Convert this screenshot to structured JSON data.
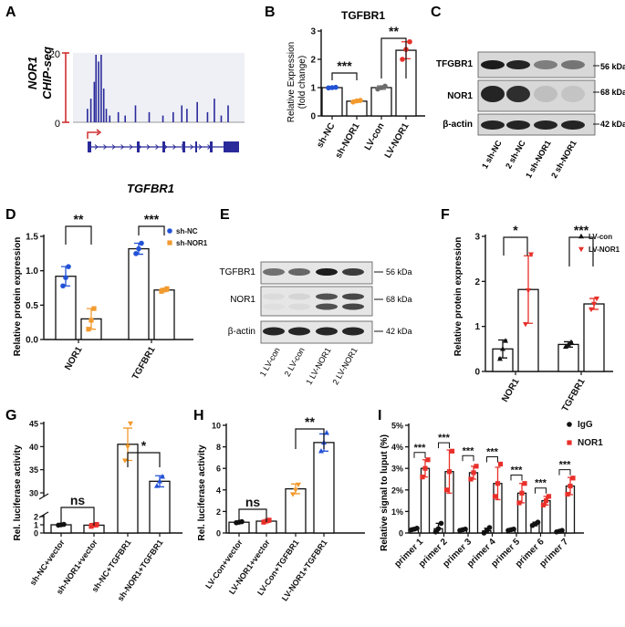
{
  "figure": {
    "panel_letters": [
      "A",
      "B",
      "C",
      "D",
      "E",
      "F",
      "G",
      "H",
      "I"
    ]
  },
  "blot_c": {
    "rows": [
      "TFGBR1",
      "NOR1",
      "β-actin"
    ],
    "kda": [
      "56 kDa",
      "68 kDa",
      "42 kDa"
    ],
    "lanes": [
      "1 sh-NC",
      "2 sh-NC",
      "1 sh-NOR1",
      "2 sh-NOR1"
    ]
  },
  "blot_e": {
    "rows": [
      "TGFBR1",
      "NOR1",
      "β-actin"
    ],
    "kda": [
      "56 kDa",
      "68 kDa",
      "42 kDa"
    ],
    "lanes": [
      "1 LV-con",
      "2 LV-con",
      "1 LV-NOR1",
      "2 LV-NOR1"
    ]
  },
  "chart_data": [
    {
      "panel": "A",
      "type": "bar",
      "ylabel_line1": "NOR1",
      "ylabel_line2": "CHIP-seq",
      "yticks": [
        "20",
        "0"
      ],
      "gene_label": "TGFBR1",
      "ylim": [
        0,
        20
      ],
      "peaks": [
        [
          0.08,
          4
        ],
        [
          0.1,
          7
        ],
        [
          0.12,
          12
        ],
        [
          0.13,
          20
        ],
        [
          0.145,
          18
        ],
        [
          0.16,
          20
        ],
        [
          0.175,
          10
        ],
        [
          0.19,
          4
        ],
        [
          0.21,
          2
        ],
        [
          0.26,
          3
        ],
        [
          0.3,
          2
        ],
        [
          0.36,
          5
        ],
        [
          0.44,
          3
        ],
        [
          0.52,
          2
        ],
        [
          0.58,
          3
        ],
        [
          0.63,
          5
        ],
        [
          0.66,
          4
        ],
        [
          0.72,
          6
        ],
        [
          0.78,
          3
        ],
        [
          0.82,
          7
        ],
        [
          0.86,
          2
        ],
        [
          0.9,
          5
        ]
      ]
    },
    {
      "panel": "B",
      "type": "bar",
      "title": "TGFBR1",
      "ylabel_line1": "Relative  Expression",
      "ylabel_line2": "(fold change)",
      "ylim": [
        0,
        3
      ],
      "yticks": [
        "0",
        "1",
        "2",
        "3"
      ],
      "categories": [
        "sh-NC",
        "sh-NOR1",
        "LV-con",
        "LV-NOR1"
      ],
      "values": [
        1.0,
        0.52,
        1.0,
        2.32
      ],
      "errors": [
        0.03,
        0.04,
        0.06,
        0.3
      ],
      "points": [
        [
          0.99,
          1.0,
          1.01
        ],
        [
          0.49,
          0.53,
          0.55
        ],
        [
          0.95,
          1.0,
          1.05
        ],
        [
          2.0,
          2.35,
          2.62
        ]
      ],
      "colors": [
        "#2352d6",
        "#f29a2e",
        "#6b6b6b",
        "#e8302a"
      ],
      "sig": [
        {
          "from": 0,
          "to": 1,
          "label": "***"
        },
        {
          "from": 2,
          "to": 3,
          "label": "**"
        }
      ]
    },
    {
      "panel": "D",
      "type": "bar",
      "ylabel": "Relative protein expression",
      "ylim": [
        0,
        1.5
      ],
      "yticks": [
        "0.0",
        "0.5",
        "1.0",
        "1.5"
      ],
      "groups": [
        "NOR1",
        "TGFBR1"
      ],
      "series": [
        {
          "name": "sh-NC",
          "color": "#2352d6",
          "values": [
            0.92,
            1.32
          ],
          "errors": [
            0.14,
            0.08
          ],
          "points": [
            [
              0.78,
              0.9,
              1.06
            ],
            [
              1.25,
              1.32,
              1.4
            ]
          ]
        },
        {
          "name": "sh-NOR1",
          "color": "#f29a2e",
          "values": [
            0.3,
            0.72
          ],
          "errors": [
            0.15,
            0.02
          ],
          "points": [
            [
              0.15,
              0.28,
              0.45
            ],
            [
              0.7,
              0.72,
              0.74
            ]
          ]
        }
      ],
      "sig": [
        {
          "group": 0,
          "label": "**"
        },
        {
          "group": 1,
          "label": "***"
        }
      ]
    },
    {
      "panel": "F",
      "type": "bar",
      "ylabel": "Relative protein expression",
      "ylim": [
        0,
        3
      ],
      "yticks": [
        "0",
        "1",
        "2",
        "3"
      ],
      "groups": [
        "NOR1",
        "TGFBR1"
      ],
      "series": [
        {
          "name": "LV-con",
          "color": "#111111",
          "values": [
            0.5,
            0.6
          ],
          "errors": [
            0.2,
            0.06
          ],
          "points": [
            [
              0.28,
              0.5,
              0.68
            ],
            [
              0.55,
              0.6,
              0.65
            ]
          ]
        },
        {
          "name": "LV-NOR1",
          "color": "#e8302a",
          "values": [
            1.82,
            1.5
          ],
          "errors": [
            0.75,
            0.12
          ],
          "points": [
            [
              1.05,
              1.8,
              2.6
            ],
            [
              1.38,
              1.5,
              1.62
            ]
          ]
        }
      ],
      "sig": [
        {
          "group": 0,
          "label": "*"
        },
        {
          "group": 1,
          "label": "***"
        }
      ]
    },
    {
      "panel": "G",
      "type": "bar",
      "ylabel": "Rel. luciferase activity",
      "yticks": [
        "0",
        "1",
        "2",
        "30",
        "35",
        "40",
        "45"
      ],
      "categories": [
        "sh-NC+vector",
        "sh-NOR1+vector",
        "sh-NC+TGFBR1",
        "sh-NOR1+TGFBR1"
      ],
      "values": [
        1.0,
        0.95,
        40.5,
        32.5
      ],
      "errors": [
        0.1,
        0.2,
        3.5,
        1.2
      ],
      "points": [
        [
          0.95,
          1.0,
          1.05
        ],
        [
          0.8,
          0.95,
          1.05
        ],
        [
          37,
          40,
          45
        ],
        [
          31.5,
          32.5,
          33.5
        ]
      ],
      "colors": [
        "#111111",
        "#e8302a",
        "#f29a2e",
        "#2352d6"
      ],
      "sig": [
        {
          "from": 0,
          "to": 1,
          "label": "ns"
        },
        {
          "from": 2,
          "to": 3,
          "label": "*"
        }
      ]
    },
    {
      "panel": "H",
      "type": "bar",
      "ylabel": "Rel. luciferase activity",
      "ylim": [
        0,
        10
      ],
      "yticks": [
        "0",
        "2",
        "4",
        "6",
        "8",
        "10"
      ],
      "categories": [
        "LV-Con+vector",
        "LV-NOR1+vector",
        "LV-Con+TGFBR1",
        "LV-NOR1+TGFBR1"
      ],
      "values": [
        1.0,
        1.1,
        4.1,
        8.4
      ],
      "errors": [
        0.1,
        0.1,
        0.45,
        0.8
      ],
      "points": [
        [
          0.95,
          1.0,
          1.05
        ],
        [
          1.0,
          1.1,
          1.2
        ],
        [
          3.6,
          4.0,
          4.5
        ],
        [
          7.6,
          8.4,
          9.3
        ]
      ],
      "colors": [
        "#111111",
        "#e8302a",
        "#f29a2e",
        "#2352d6"
      ],
      "sig": [
        {
          "from": 0,
          "to": 1,
          "label": "ns"
        },
        {
          "from": 2,
          "to": 3,
          "label": "**"
        }
      ]
    },
    {
      "panel": "I",
      "type": "bar",
      "ylabel": "Relative signal to luput (%)",
      "ylim": [
        0,
        5
      ],
      "yticks": [
        "0",
        "1%",
        "2%",
        "3%",
        "4%",
        "5%"
      ],
      "groups": [
        "primer 1",
        "primer 2",
        "primer 3",
        "primer 4",
        "primer 5",
        "primer 6",
        "primer 7"
      ],
      "series": [
        {
          "name": "IgG",
          "color": "#111111",
          "values": [
            0.18,
            0.2,
            0.15,
            0.1,
            0.15,
            0.42,
            0.08
          ],
          "errors": [
            0.05,
            0.25,
            0.03,
            0.12,
            0.03,
            0.08,
            0.04
          ],
          "points": [
            [
              0.15,
              0.18,
              0.22
            ],
            [
              0.05,
              0.2,
              0.45
            ],
            [
              0.12,
              0.15,
              0.18
            ],
            [
              0.0,
              0.1,
              0.25
            ],
            [
              0.12,
              0.15,
              0.18
            ],
            [
              0.35,
              0.42,
              0.5
            ],
            [
              0.05,
              0.08,
              0.12
            ]
          ]
        },
        {
          "name": "NOR1",
          "color": "#e8302a",
          "values": [
            3.0,
            2.85,
            2.8,
            2.3,
            1.85,
            1.5,
            2.18
          ],
          "errors": [
            0.4,
            1.0,
            0.3,
            0.75,
            0.45,
            0.2,
            0.4
          ],
          "points": [
            [
              2.6,
              3.0,
              3.4
            ],
            [
              2.0,
              2.85,
              3.8
            ],
            [
              2.5,
              2.8,
              3.1
            ],
            [
              1.7,
              2.3,
              3.2
            ],
            [
              1.4,
              1.85,
              2.3
            ],
            [
              1.3,
              1.5,
              1.7
            ],
            [
              1.8,
              2.18,
              2.55
            ]
          ]
        }
      ],
      "sig_label": "***"
    }
  ]
}
